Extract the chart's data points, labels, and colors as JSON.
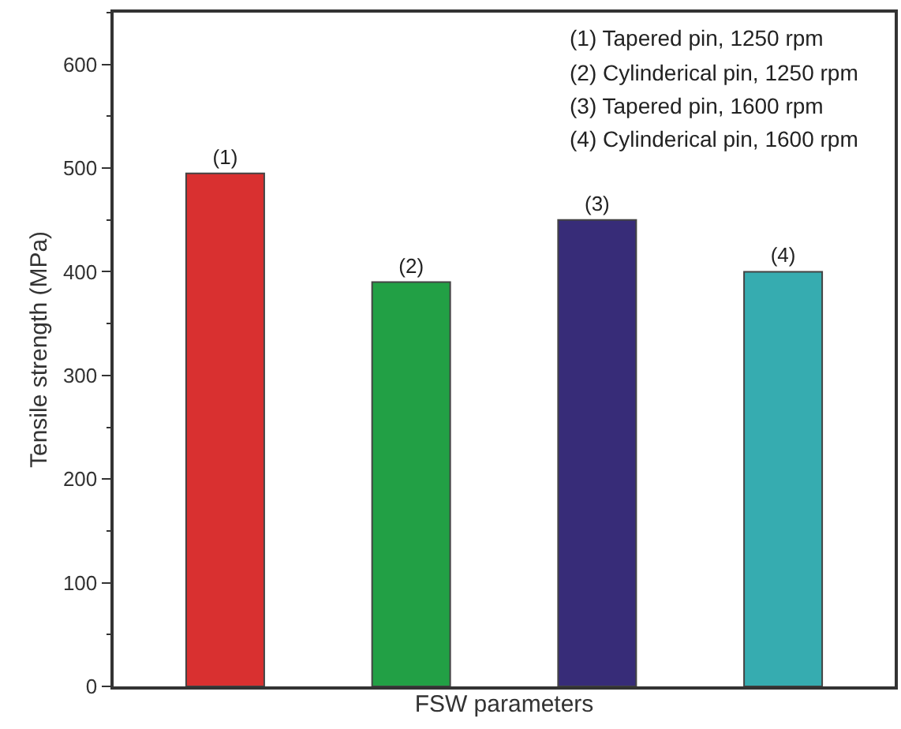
{
  "chart_data": {
    "type": "bar",
    "xlabel": "FSW parameters",
    "ylabel": "Tensile strength (MPa)",
    "categories": [
      "(1)",
      "(2)",
      "(3)",
      "(4)"
    ],
    "values": [
      495,
      390,
      450,
      400
    ],
    "colors": [
      "#d93030",
      "#22a045",
      "#372c78",
      "#36acb0"
    ],
    "ylim": [
      0,
      650
    ],
    "yticks": [
      0,
      100,
      200,
      300,
      400,
      500,
      600
    ],
    "grid": false,
    "annotations": [
      "(1) Tapered pin, 1250 rpm",
      "(2) Cylinderical pin, 1250 rpm",
      "(3) Tapered pin, 1600 rpm",
      "(4) Cylinderical pin, 1600 rpm"
    ]
  }
}
